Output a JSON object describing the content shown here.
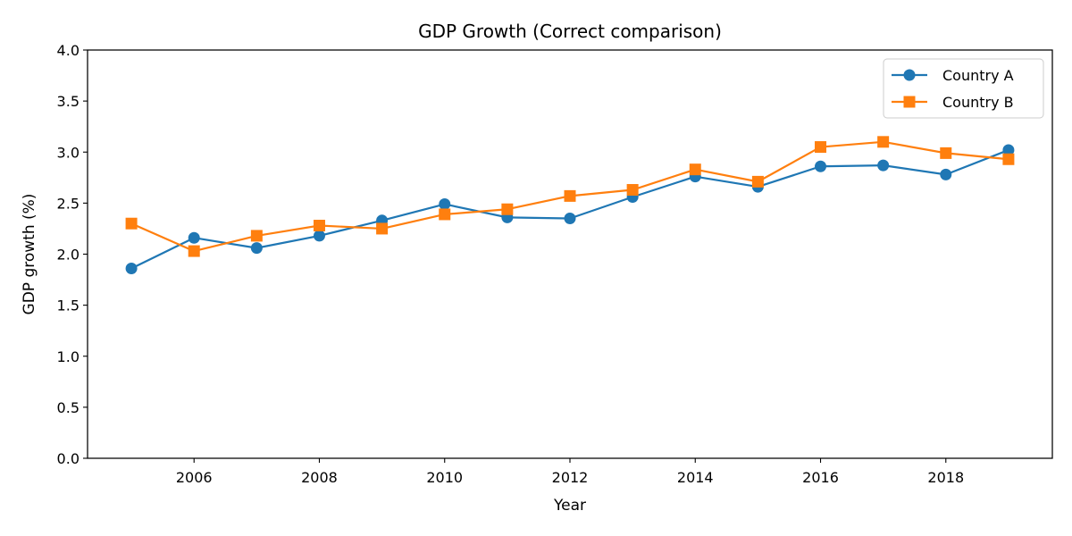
{
  "chart_data": {
    "type": "line",
    "title": "GDP Growth (Correct comparison)",
    "xlabel": "Year",
    "ylabel": "GDP growth (%)",
    "x": [
      2005,
      2006,
      2007,
      2008,
      2009,
      2010,
      2011,
      2012,
      2013,
      2014,
      2015,
      2016,
      2017,
      2018,
      2019
    ],
    "xlim": [
      2004.3,
      2019.7
    ],
    "ylim": [
      0.0,
      4.0
    ],
    "xticks": [
      2006,
      2008,
      2010,
      2012,
      2014,
      2016,
      2018
    ],
    "yticks": [
      "0.0",
      "0.5",
      "1.0",
      "1.5",
      "2.0",
      "2.5",
      "3.0",
      "3.5",
      "4.0"
    ],
    "grid": false,
    "legend_position": "upper right",
    "series": [
      {
        "name": "Country A",
        "color": "#1f77b4",
        "marker": "circle",
        "values": [
          1.86,
          2.16,
          2.06,
          2.18,
          2.33,
          2.49,
          2.36,
          2.35,
          2.56,
          2.76,
          2.66,
          2.86,
          2.87,
          2.78,
          3.02
        ]
      },
      {
        "name": "Country B",
        "color": "#ff7f0e",
        "marker": "square",
        "values": [
          2.3,
          2.03,
          2.18,
          2.28,
          2.25,
          2.39,
          2.44,
          2.57,
          2.63,
          2.83,
          2.71,
          3.05,
          3.1,
          2.99,
          2.93
        ]
      }
    ]
  }
}
